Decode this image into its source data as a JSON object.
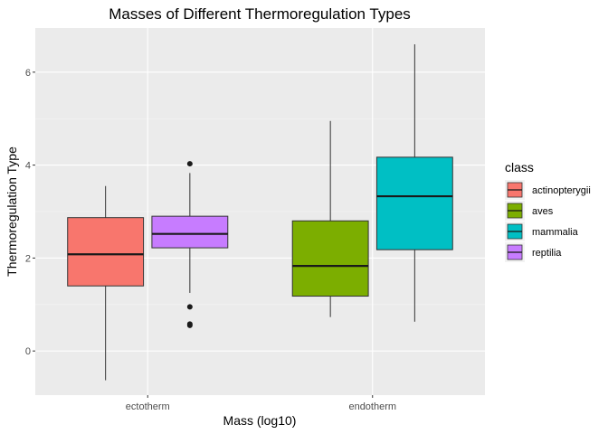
{
  "chart_data": {
    "type": "boxplot",
    "title": "Masses of Different Thermoregulation Types",
    "xlabel": "Mass (log10)",
    "ylabel": "Thermoregulation Type",
    "categories": [
      "ectotherm",
      "endotherm"
    ],
    "ylim": [
      -0.95,
      6.95
    ],
    "yticks": [
      0,
      2,
      4,
      6
    ],
    "grid": true,
    "legend": {
      "title": "class",
      "position": "right",
      "entries": [
        {
          "label": "actinopterygii",
          "color": "#F8766D"
        },
        {
          "label": "aves",
          "color": "#7CAE00"
        },
        {
          "label": "mammalia",
          "color": "#00BFC4"
        },
        {
          "label": "reptilia",
          "color": "#C77CFF"
        }
      ]
    },
    "boxes": [
      {
        "category": "ectotherm",
        "class": "actinopterygii",
        "color": "#F8766D",
        "min": -0.63,
        "q1": 1.4,
        "median": 2.08,
        "q3": 2.87,
        "max": 3.55,
        "outliers": []
      },
      {
        "category": "ectotherm",
        "class": "reptilia",
        "color": "#C77CFF",
        "min": 1.25,
        "q1": 2.22,
        "median": 2.52,
        "q3": 2.9,
        "max": 3.83,
        "outliers": [
          4.03,
          0.95,
          0.58,
          0.55
        ]
      },
      {
        "category": "endotherm",
        "class": "aves",
        "color": "#7CAE00",
        "min": 0.73,
        "q1": 1.18,
        "median": 1.83,
        "q3": 2.8,
        "max": 4.95,
        "outliers": []
      },
      {
        "category": "endotherm",
        "class": "mammalia",
        "color": "#00BFC4",
        "min": 0.63,
        "q1": 2.18,
        "median": 3.33,
        "q3": 4.17,
        "max": 6.6,
        "outliers": []
      }
    ]
  }
}
